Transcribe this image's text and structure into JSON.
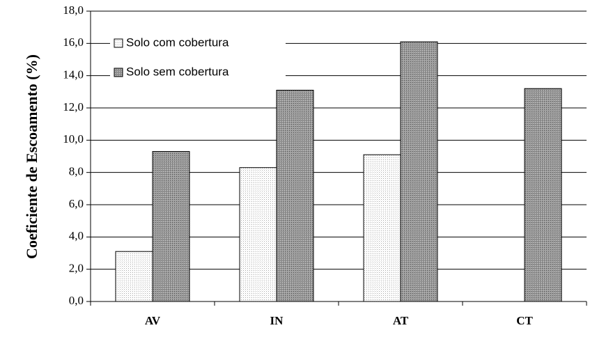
{
  "chart_data": {
    "type": "bar",
    "y_label": "Coeficiente de Escoamento (%)",
    "categories": [
      "AV",
      "IN",
      "AT",
      "CT"
    ],
    "series": [
      {
        "name": "Solo com cobertura",
        "color": "#e6e6e6",
        "values": [
          3.1,
          8.3,
          9.1,
          null
        ]
      },
      {
        "name": "Solo sem cobertura",
        "color": "#9a9a9a",
        "values": [
          9.3,
          13.1,
          16.1,
          13.2
        ]
      }
    ],
    "ylim": [
      0,
      18
    ],
    "yticks": [
      {
        "value": 0,
        "label": "0,0"
      },
      {
        "value": 2,
        "label": "2,0"
      },
      {
        "value": 4,
        "label": "4,0"
      },
      {
        "value": 6,
        "label": "6,0"
      },
      {
        "value": 8,
        "label": "8,0"
      },
      {
        "value": 10,
        "label": "10,0"
      },
      {
        "value": 12,
        "label": "12,0"
      },
      {
        "value": 14,
        "label": "14,0"
      },
      {
        "value": 16,
        "label": "16,0"
      },
      {
        "value": 18,
        "label": "18,0"
      }
    ],
    "grid": true,
    "legend": "top-left"
  }
}
